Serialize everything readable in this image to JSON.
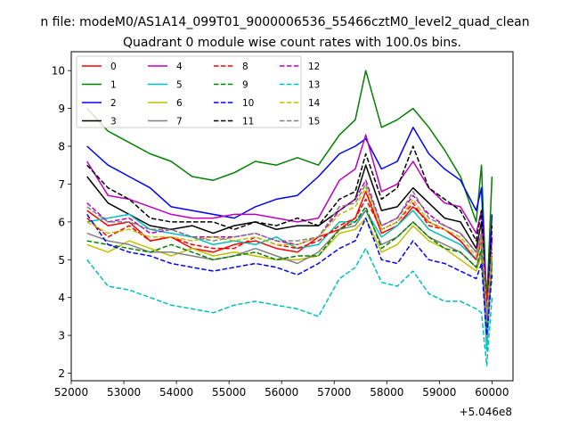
{
  "figure": {
    "suptitle": "n file: modeM0/AS1A14_099T01_9000006536_55466cztM0_level2_quad_clean"
  },
  "chart_data": {
    "type": "line",
    "title": "Quadrant 0 module wise count rates with 100.0s bins.",
    "xlabel": "",
    "ylabel": "",
    "x_offset_label": "+5.046e8",
    "xlim": [
      52000,
      60400
    ],
    "ylim": [
      1.8,
      10.5
    ],
    "xticks": [
      52000,
      53000,
      54000,
      55000,
      56000,
      57000,
      58000,
      59000,
      60000
    ],
    "xtick_labels": [
      "52000",
      "53000",
      "54000",
      "55000",
      "56000",
      "57000",
      "58000",
      "59000",
      "60000"
    ],
    "yticks": [
      2,
      3,
      4,
      5,
      6,
      7,
      8,
      9,
      10
    ],
    "ytick_labels": [
      "2",
      "3",
      "4",
      "5",
      "6",
      "7",
      "8",
      "9",
      "10"
    ],
    "legend_position": "upper-left",
    "legend_columns": 4,
    "x": [
      52300,
      52700,
      53100,
      53500,
      53900,
      54300,
      54700,
      55100,
      55500,
      55900,
      56300,
      56700,
      57100,
      57400,
      57600,
      57900,
      58200,
      58500,
      58800,
      59100,
      59400,
      59700,
      59800,
      59900,
      60000
    ],
    "series": [
      {
        "name": "0",
        "color": "#ff0000",
        "dash": "solid",
        "values": [
          6.3,
          5.9,
          6.0,
          5.5,
          5.6,
          5.3,
          5.2,
          5.4,
          5.5,
          5.3,
          5.2,
          5.6,
          5.8,
          6.1,
          6.8,
          5.7,
          5.9,
          6.4,
          6.0,
          5.8,
          5.5,
          5.0,
          5.6,
          4.2,
          5.0
        ]
      },
      {
        "name": "1",
        "color": "#008000",
        "dash": "solid",
        "values": [
          9.0,
          8.4,
          8.1,
          7.8,
          7.6,
          7.2,
          7.1,
          7.3,
          7.6,
          7.5,
          7.7,
          7.5,
          8.3,
          8.7,
          10.0,
          8.5,
          8.7,
          9.0,
          8.5,
          7.9,
          7.2,
          6.0,
          7.5,
          3.8,
          7.2
        ]
      },
      {
        "name": "2",
        "color": "#0000ff",
        "dash": "solid",
        "values": [
          8.0,
          7.5,
          7.2,
          6.9,
          6.4,
          6.3,
          6.2,
          6.1,
          6.4,
          6.6,
          6.7,
          7.2,
          7.8,
          8.0,
          8.2,
          7.4,
          7.6,
          8.5,
          7.8,
          7.4,
          7.1,
          6.3,
          6.9,
          3.6,
          6.2
        ]
      },
      {
        "name": "3",
        "color": "#000000",
        "dash": "solid",
        "values": [
          7.2,
          6.5,
          6.2,
          5.9,
          5.8,
          5.9,
          5.7,
          5.9,
          6.0,
          5.8,
          5.9,
          5.9,
          6.3,
          6.6,
          7.5,
          6.3,
          6.4,
          6.9,
          6.5,
          6.1,
          6.0,
          5.3,
          6.0,
          3.6,
          5.6
        ]
      },
      {
        "name": "4",
        "color": "#bf00bf",
        "dash": "solid",
        "values": [
          7.6,
          6.7,
          6.6,
          6.4,
          6.2,
          6.1,
          6.1,
          6.2,
          6.2,
          6.1,
          6.0,
          6.1,
          7.1,
          7.4,
          8.3,
          6.8,
          7.0,
          7.6,
          6.9,
          6.5,
          6.4,
          5.7,
          6.3,
          3.8,
          5.6
        ]
      },
      {
        "name": "5",
        "color": "#00bfbf",
        "dash": "solid",
        "values": [
          6.0,
          6.1,
          6.2,
          5.8,
          5.7,
          5.6,
          5.4,
          5.5,
          5.4,
          5.6,
          5.3,
          5.4,
          6.0,
          6.0,
          6.3,
          5.6,
          5.9,
          6.3,
          5.8,
          5.6,
          5.4,
          5.0,
          5.5,
          2.6,
          5.0
        ]
      },
      {
        "name": "6",
        "color": "#bfbf00",
        "dash": "solid",
        "values": [
          5.4,
          5.2,
          5.5,
          5.3,
          5.1,
          5.3,
          5.1,
          5.2,
          5.1,
          5.0,
          5.0,
          5.1,
          5.7,
          5.8,
          6.1,
          5.2,
          5.4,
          5.9,
          5.5,
          5.3,
          5.0,
          4.7,
          5.1,
          3.0,
          4.8
        ]
      },
      {
        "name": "7",
        "color": "#808080",
        "dash": "solid",
        "values": [
          5.7,
          5.5,
          5.4,
          5.2,
          5.2,
          5.1,
          5.0,
          5.1,
          5.3,
          5.1,
          4.9,
          5.2,
          5.8,
          5.9,
          6.3,
          5.4,
          5.6,
          6.0,
          5.6,
          5.4,
          5.2,
          4.8,
          5.2,
          3.1,
          4.9
        ]
      },
      {
        "name": "8",
        "color": "#ff0000",
        "dash": "dashed",
        "values": [
          6.1,
          5.6,
          5.9,
          5.5,
          5.6,
          5.4,
          5.3,
          5.3,
          5.6,
          5.4,
          5.3,
          5.5,
          5.9,
          6.1,
          6.6,
          5.8,
          6.0,
          6.5,
          5.9,
          5.8,
          5.5,
          5.0,
          5.5,
          4.0,
          5.1
        ]
      },
      {
        "name": "9",
        "color": "#008000",
        "dash": "dashed",
        "values": [
          5.5,
          5.4,
          5.3,
          5.2,
          5.4,
          5.2,
          5.0,
          5.1,
          5.2,
          5.0,
          5.1,
          5.1,
          5.8,
          6.0,
          6.4,
          5.3,
          5.6,
          6.0,
          5.6,
          5.3,
          5.2,
          4.8,
          5.3,
          3.5,
          4.9
        ]
      },
      {
        "name": "10",
        "color": "#0000ff",
        "dash": "dashed",
        "values": [
          6.2,
          5.4,
          5.2,
          5.1,
          4.9,
          4.8,
          4.7,
          4.8,
          4.9,
          4.8,
          4.6,
          4.9,
          5.3,
          5.5,
          6.1,
          5.0,
          4.9,
          5.5,
          5.0,
          4.9,
          4.7,
          4.5,
          4.9,
          3.0,
          4.6
        ]
      },
      {
        "name": "11",
        "color": "#000000",
        "dash": "dashed",
        "values": [
          7.5,
          6.9,
          6.6,
          6.1,
          6.0,
          6.0,
          6.0,
          5.8,
          6.0,
          5.9,
          6.1,
          5.9,
          6.6,
          6.8,
          7.8,
          6.6,
          6.9,
          8.0,
          6.9,
          6.6,
          6.3,
          5.5,
          6.3,
          3.4,
          5.9
        ]
      },
      {
        "name": "12",
        "color": "#bf00bf",
        "dash": "dashed",
        "values": [
          6.5,
          6.0,
          6.1,
          5.7,
          5.8,
          5.6,
          5.6,
          5.6,
          5.7,
          5.5,
          5.4,
          5.6,
          6.3,
          6.6,
          7.1,
          5.9,
          6.1,
          6.7,
          6.2,
          5.9,
          5.7,
          5.2,
          5.7,
          3.5,
          5.2
        ]
      },
      {
        "name": "13",
        "color": "#00bfbf",
        "dash": "dashed",
        "values": [
          5.0,
          4.3,
          4.2,
          4.0,
          3.8,
          3.7,
          3.6,
          3.8,
          3.9,
          3.8,
          3.7,
          3.5,
          4.5,
          4.8,
          5.3,
          4.4,
          4.3,
          4.7,
          4.1,
          3.9,
          3.9,
          3.7,
          3.6,
          2.2,
          4.0
        ]
      },
      {
        "name": "14",
        "color": "#bfbf00",
        "dash": "dashed",
        "values": [
          6.0,
          5.7,
          5.8,
          5.6,
          5.6,
          5.5,
          5.6,
          5.5,
          5.6,
          5.4,
          5.4,
          5.6,
          6.2,
          6.4,
          6.9,
          5.8,
          6.0,
          6.6,
          6.0,
          5.8,
          5.6,
          5.1,
          5.6,
          3.6,
          5.1
        ]
      },
      {
        "name": "15",
        "color": "#808080",
        "dash": "dashed",
        "values": [
          6.4,
          6.0,
          6.0,
          5.8,
          5.8,
          5.6,
          5.5,
          5.6,
          5.7,
          5.5,
          5.5,
          5.6,
          6.4,
          6.5,
          7.0,
          5.9,
          6.1,
          6.8,
          6.1,
          5.9,
          5.7,
          5.2,
          5.7,
          3.4,
          5.3
        ]
      }
    ]
  }
}
